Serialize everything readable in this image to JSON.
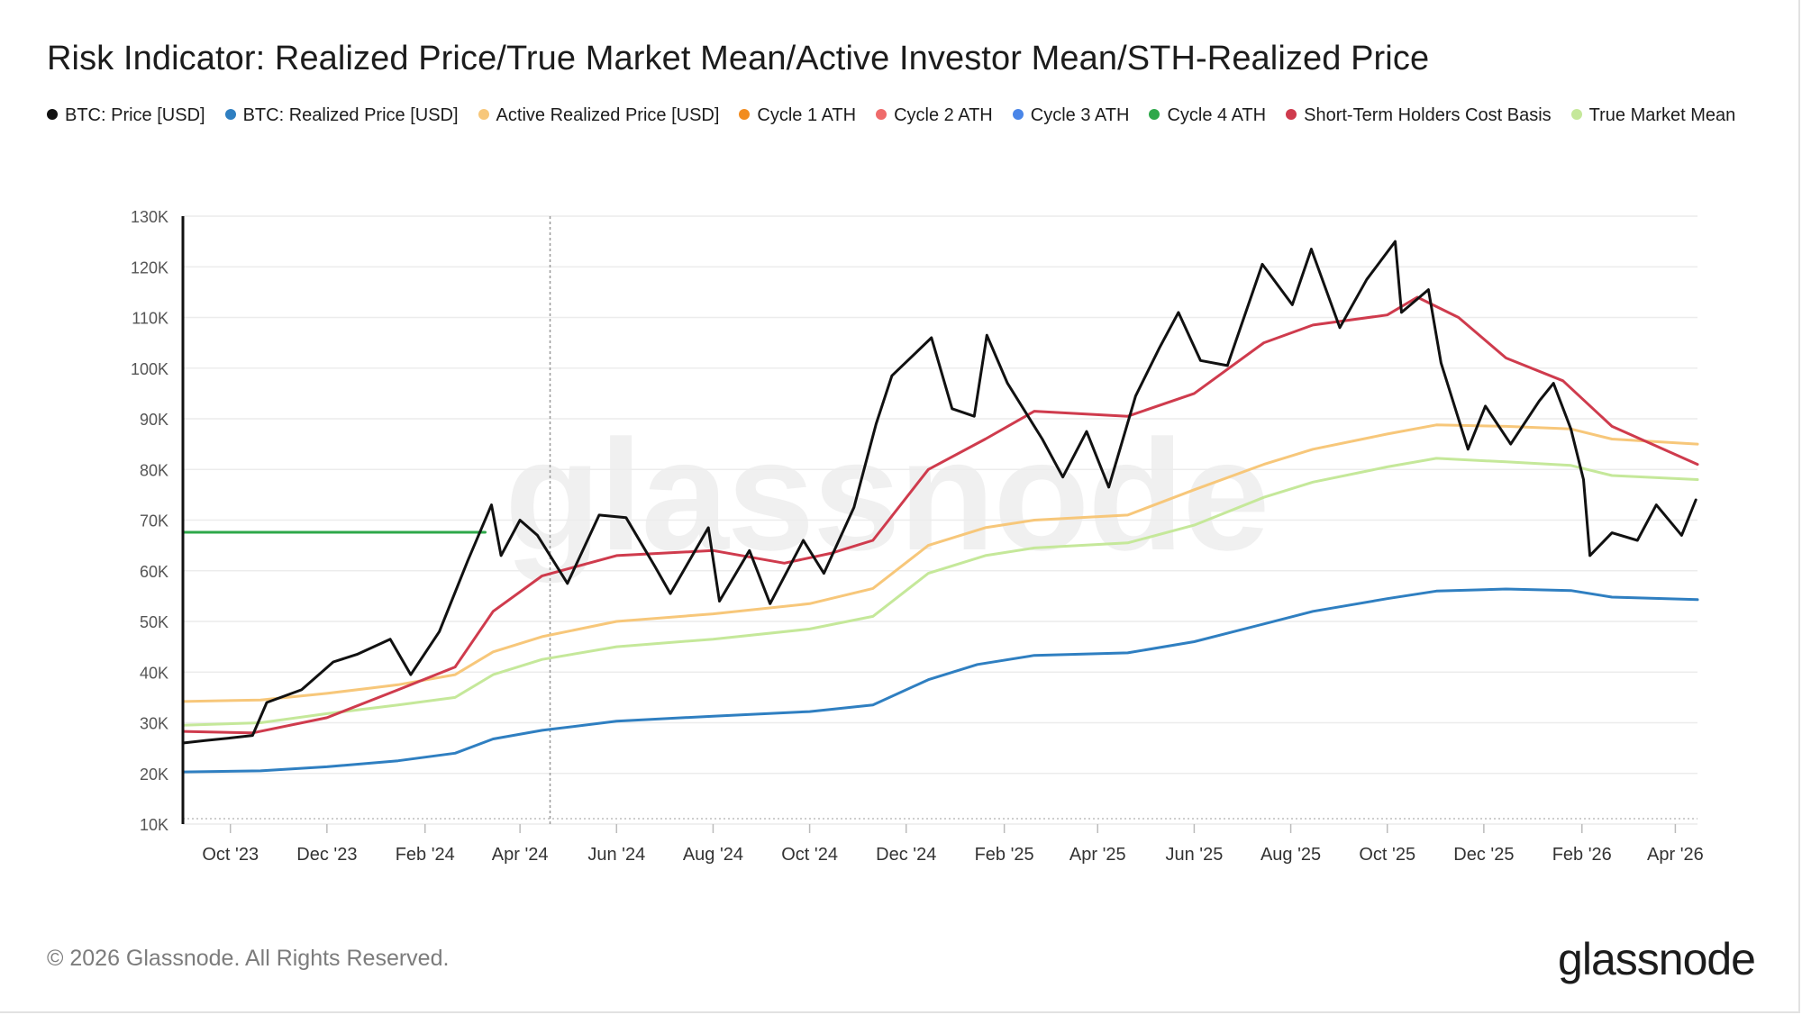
{
  "chart_data": {
    "type": "line",
    "title": "Risk Indicator: Realized Price/True Market Mean/Active Investor Mean/STH-Realized Price",
    "xlabel": "",
    "ylabel": "",
    "x_range": [
      "2023-09-01",
      "2026-04-15"
    ],
    "ylim": [
      10000,
      130000
    ],
    "y_ticks": [
      10000,
      20000,
      30000,
      40000,
      50000,
      60000,
      70000,
      80000,
      90000,
      100000,
      110000,
      120000,
      130000
    ],
    "y_tick_labels": [
      "10K",
      "20K",
      "30K",
      "40K",
      "50K",
      "60K",
      "70K",
      "80K",
      "90K",
      "100K",
      "110K",
      "120K",
      "130K"
    ],
    "x_ticks": [
      "2023-10-01",
      "2023-12-01",
      "2024-02-01",
      "2024-04-01",
      "2024-06-01",
      "2024-08-01",
      "2024-10-01",
      "2024-12-01",
      "2025-02-01",
      "2025-04-01",
      "2025-06-01",
      "2025-08-01",
      "2025-10-01",
      "2025-12-01",
      "2026-02-01",
      "2026-04-01"
    ],
    "x_tick_labels": [
      "Oct '23",
      "Dec '23",
      "Feb '24",
      "Apr '24",
      "Jun '24",
      "Aug '24",
      "Oct '24",
      "Dec '24",
      "Feb '25",
      "Apr '25",
      "Jun '25",
      "Aug '25",
      "Oct '25",
      "Dec '25",
      "Feb '26",
      "Apr '26"
    ],
    "grid": true,
    "legend_position": "top-left",
    "vertical_marker": "2024-04-20",
    "series": [
      {
        "name": "BTC: Price [USD]",
        "color": "#111111",
        "width": 3,
        "points": [
          [
            "2023-09-01",
            26000
          ],
          [
            "2023-09-15",
            26500
          ],
          [
            "2023-10-01",
            27000
          ],
          [
            "2023-10-15",
            27500
          ],
          [
            "2023-10-24",
            34000
          ],
          [
            "2023-11-15",
            36500
          ],
          [
            "2023-12-05",
            42000
          ],
          [
            "2023-12-20",
            43500
          ],
          [
            "2024-01-10",
            46500
          ],
          [
            "2024-01-23",
            39500
          ],
          [
            "2024-02-10",
            48000
          ],
          [
            "2024-02-28",
            62000
          ],
          [
            "2024-03-14",
            73000
          ],
          [
            "2024-03-20",
            63000
          ],
          [
            "2024-04-01",
            70000
          ],
          [
            "2024-04-12",
            67000
          ],
          [
            "2024-05-01",
            57500
          ],
          [
            "2024-05-21",
            71000
          ],
          [
            "2024-06-07",
            70500
          ],
          [
            "2024-06-25",
            61000
          ],
          [
            "2024-07-05",
            55500
          ],
          [
            "2024-07-29",
            68500
          ],
          [
            "2024-08-05",
            54000
          ],
          [
            "2024-08-24",
            64000
          ],
          [
            "2024-09-06",
            53500
          ],
          [
            "2024-09-27",
            66000
          ],
          [
            "2024-10-10",
            59500
          ],
          [
            "2024-10-29",
            72500
          ],
          [
            "2024-11-12",
            89000
          ],
          [
            "2024-11-22",
            98500
          ],
          [
            "2024-12-17",
            106000
          ],
          [
            "2024-12-30",
            92000
          ],
          [
            "2025-01-13",
            90500
          ],
          [
            "2025-01-21",
            106500
          ],
          [
            "2025-02-03",
            97000
          ],
          [
            "2025-02-25",
            86000
          ],
          [
            "2025-03-10",
            78500
          ],
          [
            "2025-03-25",
            87500
          ],
          [
            "2025-04-08",
            76500
          ],
          [
            "2025-04-25",
            94500
          ],
          [
            "2025-05-10",
            104000
          ],
          [
            "2025-05-22",
            111000
          ],
          [
            "2025-06-05",
            101500
          ],
          [
            "2025-06-22",
            100500
          ],
          [
            "2025-07-14",
            120500
          ],
          [
            "2025-08-02",
            112500
          ],
          [
            "2025-08-14",
            123500
          ],
          [
            "2025-09-01",
            108000
          ],
          [
            "2025-09-18",
            117500
          ],
          [
            "2025-10-06",
            125000
          ],
          [
            "2025-10-10",
            111000
          ],
          [
            "2025-10-27",
            115500
          ],
          [
            "2025-11-04",
            101000
          ],
          [
            "2025-11-21",
            84000
          ],
          [
            "2025-12-02",
            92500
          ],
          [
            "2025-12-18",
            85000
          ],
          [
            "2026-01-05",
            93500
          ],
          [
            "2026-01-14",
            97000
          ],
          [
            "2026-01-25",
            88000
          ],
          [
            "2026-02-02",
            78000
          ],
          [
            "2026-02-06",
            63000
          ],
          [
            "2026-02-20",
            67500
          ],
          [
            "2026-03-08",
            66000
          ],
          [
            "2026-03-20",
            73000
          ],
          [
            "2026-04-05",
            67000
          ],
          [
            "2026-04-14",
            74000
          ]
        ]
      },
      {
        "name": "BTC: Realized Price [USD]",
        "color": "#2f7fc1",
        "width": 3,
        "points": [
          [
            "2023-09-01",
            20300
          ],
          [
            "2023-10-20",
            20500
          ],
          [
            "2023-12-01",
            21300
          ],
          [
            "2024-01-15",
            22500
          ],
          [
            "2024-02-20",
            24000
          ],
          [
            "2024-03-15",
            26800
          ],
          [
            "2024-04-15",
            28500
          ],
          [
            "2024-06-01",
            30300
          ],
          [
            "2024-08-01",
            31300
          ],
          [
            "2024-10-01",
            32200
          ],
          [
            "2024-11-10",
            33500
          ],
          [
            "2024-12-15",
            38500
          ],
          [
            "2025-01-15",
            41500
          ],
          [
            "2025-02-20",
            43300
          ],
          [
            "2025-04-20",
            43800
          ],
          [
            "2025-06-01",
            46000
          ],
          [
            "2025-07-15",
            49500
          ],
          [
            "2025-08-15",
            52000
          ],
          [
            "2025-10-01",
            54500
          ],
          [
            "2025-11-01",
            56000
          ],
          [
            "2025-12-15",
            56400
          ],
          [
            "2026-01-25",
            56100
          ],
          [
            "2026-02-20",
            54800
          ],
          [
            "2026-04-15",
            54300
          ]
        ]
      },
      {
        "name": "Active Realized Price [USD]",
        "color": "#f7c77a",
        "width": 3,
        "points": [
          [
            "2023-09-01",
            34200
          ],
          [
            "2023-10-20",
            34500
          ],
          [
            "2023-12-01",
            35800
          ],
          [
            "2024-01-15",
            37500
          ],
          [
            "2024-02-20",
            39500
          ],
          [
            "2024-03-15",
            44000
          ],
          [
            "2024-04-15",
            47000
          ],
          [
            "2024-06-01",
            50000
          ],
          [
            "2024-08-01",
            51500
          ],
          [
            "2024-10-01",
            53500
          ],
          [
            "2024-11-10",
            56500
          ],
          [
            "2024-12-15",
            65000
          ],
          [
            "2025-01-20",
            68500
          ],
          [
            "2025-02-20",
            70000
          ],
          [
            "2025-04-20",
            71000
          ],
          [
            "2025-06-01",
            76000
          ],
          [
            "2025-07-15",
            81000
          ],
          [
            "2025-08-15",
            84000
          ],
          [
            "2025-10-01",
            87000
          ],
          [
            "2025-11-01",
            88800
          ],
          [
            "2025-12-15",
            88500
          ],
          [
            "2026-01-25",
            88000
          ],
          [
            "2026-02-20",
            86000
          ],
          [
            "2026-04-15",
            85000
          ]
        ]
      },
      {
        "name": "Cycle 1 ATH",
        "color": "#f28c1f",
        "width": 3,
        "points": []
      },
      {
        "name": "Cycle 2 ATH",
        "color": "#ef6b6b",
        "width": 3,
        "points": []
      },
      {
        "name": "Cycle 3 ATH",
        "color": "#4a86e8",
        "width": 3,
        "points": []
      },
      {
        "name": "Cycle 4 ATH",
        "color": "#2ea84a",
        "width": 3,
        "points": [
          [
            "2023-09-01",
            67600
          ],
          [
            "2024-03-10",
            67600
          ]
        ]
      },
      {
        "name": "Short-Term Holders Cost Basis",
        "color": "#cf3b4d",
        "width": 3,
        "points": [
          [
            "2023-09-01",
            28300
          ],
          [
            "2023-10-15",
            28000
          ],
          [
            "2023-12-01",
            31000
          ],
          [
            "2024-01-15",
            36500
          ],
          [
            "2024-02-20",
            41000
          ],
          [
            "2024-03-15",
            52000
          ],
          [
            "2024-04-15",
            59000
          ],
          [
            "2024-06-01",
            63000
          ],
          [
            "2024-08-01",
            64000
          ],
          [
            "2024-09-15",
            61500
          ],
          [
            "2024-10-15",
            63500
          ],
          [
            "2024-11-10",
            66000
          ],
          [
            "2024-12-15",
            80000
          ],
          [
            "2025-01-20",
            86000
          ],
          [
            "2025-02-20",
            91500
          ],
          [
            "2025-04-20",
            90500
          ],
          [
            "2025-06-01",
            95000
          ],
          [
            "2025-07-15",
            105000
          ],
          [
            "2025-08-15",
            108500
          ],
          [
            "2025-10-01",
            110500
          ],
          [
            "2025-10-20",
            114000
          ],
          [
            "2025-11-15",
            110000
          ],
          [
            "2025-12-15",
            102000
          ],
          [
            "2026-01-20",
            97500
          ],
          [
            "2026-02-20",
            88500
          ],
          [
            "2026-04-15",
            81000
          ]
        ]
      },
      {
        "name": "True Market Mean",
        "color": "#c5e89a",
        "width": 3,
        "points": [
          [
            "2023-09-01",
            29500
          ],
          [
            "2023-10-20",
            30000
          ],
          [
            "2023-12-01",
            31800
          ],
          [
            "2024-01-15",
            33500
          ],
          [
            "2024-02-20",
            35000
          ],
          [
            "2024-03-15",
            39500
          ],
          [
            "2024-04-15",
            42500
          ],
          [
            "2024-06-01",
            45000
          ],
          [
            "2024-08-01",
            46500
          ],
          [
            "2024-10-01",
            48500
          ],
          [
            "2024-11-10",
            51000
          ],
          [
            "2024-12-15",
            59500
          ],
          [
            "2025-01-20",
            63000
          ],
          [
            "2025-02-20",
            64500
          ],
          [
            "2025-04-20",
            65500
          ],
          [
            "2025-06-01",
            69000
          ],
          [
            "2025-07-15",
            74500
          ],
          [
            "2025-08-15",
            77500
          ],
          [
            "2025-10-01",
            80500
          ],
          [
            "2025-11-01",
            82200
          ],
          [
            "2025-12-15",
            81500
          ],
          [
            "2026-01-25",
            80800
          ],
          [
            "2026-02-20",
            78800
          ],
          [
            "2026-04-15",
            78000
          ]
        ]
      }
    ]
  },
  "watermark": "glassnode",
  "footer": {
    "copyright": "© 2026 Glassnode. All Rights Reserved.",
    "brand": "glassnode"
  },
  "colors": {
    "grid": "#ececec",
    "axis": "#111111",
    "tick_text": "#555555",
    "marker": "#9a9a9a"
  }
}
